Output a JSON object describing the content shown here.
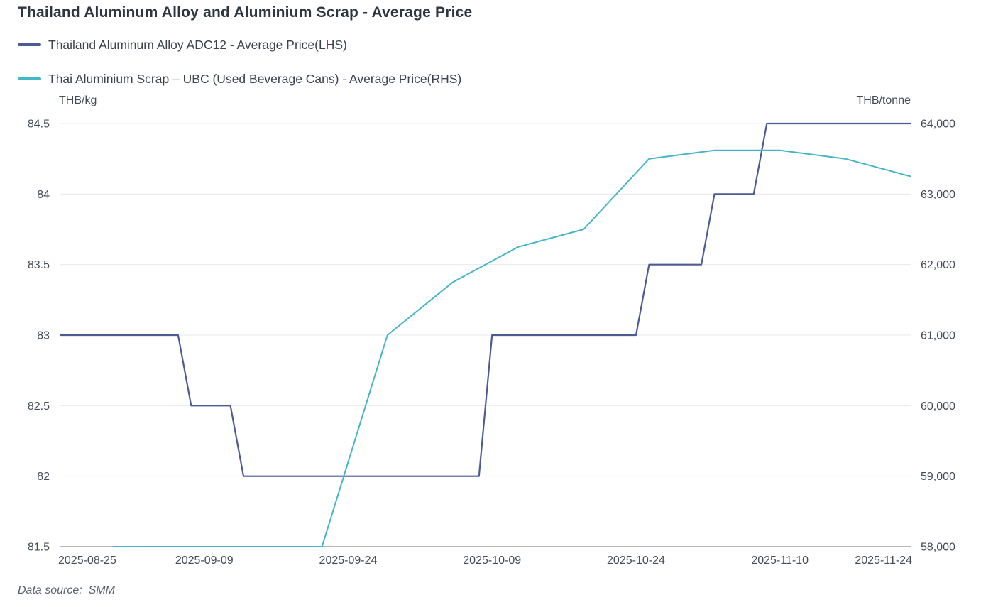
{
  "page": {
    "title": "Thailand Aluminum Alloy and Aluminium Scrap - Average Price",
    "source_note": "Data source:  SMM"
  },
  "chart_data": {
    "type": "line",
    "title": "Thailand Aluminum Alloy and Aluminium Scrap - Average Price",
    "legend_position": "top-left",
    "grid": "horizontal-only",
    "colors": {
      "grid_line": "#E9EAEE",
      "axis_line": "#6B7077",
      "adc12_line": "#4D5B94",
      "ubc_line": "#45B6C8",
      "title_text": "#2E3542",
      "tick_text": "#444B59"
    },
    "left_axis": {
      "unit": "THB/kg",
      "min": 81.5,
      "max": 84.5,
      "tick_step": 0.5,
      "ticks": [
        "84.5",
        "84",
        "83.5",
        "83",
        "82.5",
        "82",
        "81.5"
      ]
    },
    "right_axis": {
      "unit": "THB/tonne",
      "min": 58000,
      "max": 64000,
      "tick_step": 1000,
      "ticks": [
        "64,000",
        "63,000",
        "62,000",
        "61,000",
        "60,000",
        "59,000",
        "58,000"
      ]
    },
    "x_axis": {
      "tick_labels": [
        "2025-08-25",
        "2025-09-09",
        "2025-09-24",
        "2025-10-09",
        "2025-10-24",
        "2025-11-10",
        "2025-11-24"
      ],
      "tick_indices": [
        0,
        11,
        22,
        33,
        44,
        55,
        65
      ],
      "categories": [
        "2025-08-25",
        "2025-08-26",
        "2025-08-27",
        "2025-08-28",
        "2025-08-29",
        "2025-09-01",
        "2025-09-02",
        "2025-09-03",
        "2025-09-04",
        "2025-09-05",
        "2025-09-08",
        "2025-09-09",
        "2025-09-10",
        "2025-09-11",
        "2025-09-12",
        "2025-09-15",
        "2025-09-16",
        "2025-09-17",
        "2025-09-18",
        "2025-09-19",
        "2025-09-22",
        "2025-09-23",
        "2025-09-24",
        "2025-09-25",
        "2025-09-26",
        "2025-09-29",
        "2025-09-30",
        "2025-10-01",
        "2025-10-02",
        "2025-10-03",
        "2025-10-06",
        "2025-10-07",
        "2025-10-08",
        "2025-10-09",
        "2025-10-10",
        "2025-10-13",
        "2025-10-14",
        "2025-10-15",
        "2025-10-16",
        "2025-10-17",
        "2025-10-20",
        "2025-10-21",
        "2025-10-22",
        "2025-10-23",
        "2025-10-24",
        "2025-10-27",
        "2025-10-28",
        "2025-10-29",
        "2025-10-30",
        "2025-10-31",
        "2025-11-03",
        "2025-11-04",
        "2025-11-05",
        "2025-11-06",
        "2025-11-07",
        "2025-11-10",
        "2025-11-11",
        "2025-11-12",
        "2025-11-13",
        "2025-11-14",
        "2025-11-17",
        "2025-11-18",
        "2025-11-19",
        "2025-11-20",
        "2025-11-21",
        "2025-11-24"
      ]
    },
    "series": [
      {
        "name": "Thailand Aluminum Alloy ADC12 - Average Price(LHS)",
        "axis": "left",
        "unit": "THB/kg",
        "color": "#4D5B94",
        "width": 2.2,
        "points": [
          [
            "2025-08-25",
            83.0
          ],
          [
            "2025-09-05",
            83.0
          ],
          [
            "2025-09-08",
            82.5
          ],
          [
            "2025-09-11",
            82.5
          ],
          [
            "2025-09-12",
            82.0
          ],
          [
            "2025-10-08",
            82.0
          ],
          [
            "2025-10-09",
            83.0
          ],
          [
            "2025-10-24",
            83.0
          ],
          [
            "2025-10-27",
            83.5
          ],
          [
            "2025-10-31",
            83.5
          ],
          [
            "2025-11-03",
            84.0
          ],
          [
            "2025-11-06",
            84.0
          ],
          [
            "2025-11-07",
            84.5
          ],
          [
            "2025-11-24",
            84.5
          ]
        ]
      },
      {
        "name": "Thai Aluminium Scrap – UBC (Used Beverage Cans) - Average Price(RHS)",
        "axis": "right",
        "unit": "THB/tonne",
        "color": "#45B6C8",
        "width": 2,
        "points": [
          [
            "2025-08-29",
            58000
          ],
          [
            "2025-09-22",
            58000
          ],
          [
            "2025-09-29",
            61000
          ],
          [
            "2025-10-06",
            61750
          ],
          [
            "2025-10-13",
            62250
          ],
          [
            "2025-10-20",
            62500
          ],
          [
            "2025-10-27",
            63500
          ],
          [
            "2025-11-03",
            63620
          ],
          [
            "2025-11-10",
            63620
          ],
          [
            "2025-11-17",
            63500
          ],
          [
            "2025-11-24",
            63250
          ]
        ]
      }
    ]
  }
}
